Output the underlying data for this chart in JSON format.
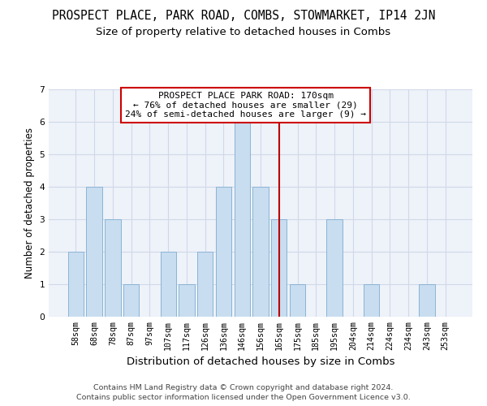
{
  "title": "PROSPECT PLACE, PARK ROAD, COMBS, STOWMARKET, IP14 2JN",
  "subtitle": "Size of property relative to detached houses in Combs",
  "xlabel": "Distribution of detached houses by size in Combs",
  "ylabel": "Number of detached properties",
  "categories": [
    "58sqm",
    "68sqm",
    "78sqm",
    "87sqm",
    "97sqm",
    "107sqm",
    "117sqm",
    "126sqm",
    "136sqm",
    "146sqm",
    "156sqm",
    "165sqm",
    "175sqm",
    "185sqm",
    "195sqm",
    "204sqm",
    "214sqm",
    "224sqm",
    "234sqm",
    "243sqm",
    "253sqm"
  ],
  "values": [
    2,
    4,
    3,
    1,
    0,
    2,
    1,
    2,
    4,
    6,
    4,
    3,
    1,
    0,
    3,
    0,
    1,
    0,
    0,
    1,
    0
  ],
  "bar_color": "#c8ddf0",
  "bar_edgecolor": "#8ab4d4",
  "bar_linewidth": 0.7,
  "red_line_index": 11,
  "ylim": [
    0,
    7
  ],
  "yticks": [
    0,
    1,
    2,
    3,
    4,
    5,
    6,
    7
  ],
  "grid_color": "#d0d8e8",
  "background_color": "#eef2f9",
  "annotation_line1": "PROSPECT PLACE PARK ROAD: 170sqm",
  "annotation_line2": "← 76% of detached houses are smaller (29)",
  "annotation_line3": "24% of semi-detached houses are larger (9) →",
  "annotation_box_facecolor": "#ffffff",
  "annotation_box_edgecolor": "#cc0000",
  "red_line_color": "#bb0000",
  "footer_line1": "Contains HM Land Registry data © Crown copyright and database right 2024.",
  "footer_line2": "Contains public sector information licensed under the Open Government Licence v3.0.",
  "title_fontsize": 10.5,
  "subtitle_fontsize": 9.5,
  "xlabel_fontsize": 9.5,
  "ylabel_fontsize": 8.5,
  "tick_fontsize": 7.2,
  "annotation_fontsize": 8,
  "footer_fontsize": 6.8
}
